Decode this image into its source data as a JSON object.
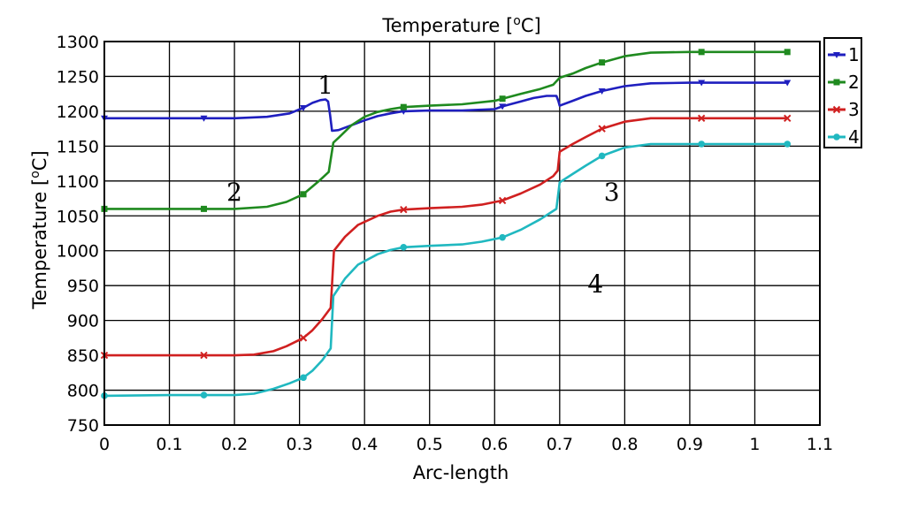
{
  "chart_data": {
    "type": "line",
    "title": "Temperature [",
    "title_sup": "o",
    "title_unit": "C]",
    "xlabel": "Arc-length",
    "ylabel": "Temperature [",
    "ylabel_sup": "o",
    "ylabel_unit": "C]",
    "xlim": [
      0,
      1.1
    ],
    "ylim": [
      750,
      1300
    ],
    "xticks": [
      "0",
      "0.1",
      "0.2",
      "0.3",
      "0.4",
      "0.5",
      "0.6",
      "0.7",
      "0.8",
      "0.9",
      "1",
      "1.1"
    ],
    "yticks": [
      "750",
      "800",
      "850",
      "900",
      "950",
      "1000",
      "1050",
      "1100",
      "1150",
      "1200",
      "1250",
      "1300"
    ],
    "grid": true,
    "legend_position": "outside-right-top",
    "series": [
      {
        "name": "1",
        "color": "#1f1fbf",
        "marker": "triangle-down",
        "points": [
          [
            0,
            1190
          ],
          [
            0.1,
            1190
          ],
          [
            0.153,
            1190
          ],
          [
            0.2,
            1190
          ],
          [
            0.25,
            1192
          ],
          [
            0.285,
            1197
          ],
          [
            0.306,
            1205
          ],
          [
            0.32,
            1212
          ],
          [
            0.332,
            1216
          ],
          [
            0.34,
            1217
          ],
          [
            0.344,
            1214
          ],
          [
            0.347,
            1195
          ],
          [
            0.35,
            1172
          ],
          [
            0.36,
            1173
          ],
          [
            0.38,
            1180
          ],
          [
            0.4,
            1187
          ],
          [
            0.42,
            1193
          ],
          [
            0.44,
            1197
          ],
          [
            0.46,
            1200
          ],
          [
            0.5,
            1201
          ],
          [
            0.55,
            1201
          ],
          [
            0.6,
            1203
          ],
          [
            0.612,
            1207
          ],
          [
            0.64,
            1214
          ],
          [
            0.66,
            1219
          ],
          [
            0.68,
            1222
          ],
          [
            0.695,
            1222
          ],
          [
            0.698,
            1215
          ],
          [
            0.7,
            1208
          ],
          [
            0.72,
            1215
          ],
          [
            0.74,
            1222
          ],
          [
            0.765,
            1229
          ],
          [
            0.8,
            1236
          ],
          [
            0.84,
            1240
          ],
          [
            0.9,
            1241
          ],
          [
            0.918,
            1241
          ],
          [
            1.0,
            1241
          ],
          [
            1.05,
            1241
          ]
        ]
      },
      {
        "name": "2",
        "color": "#1f8a1f",
        "marker": "square",
        "points": [
          [
            0,
            1060
          ],
          [
            0.1,
            1060
          ],
          [
            0.153,
            1060
          ],
          [
            0.2,
            1060
          ],
          [
            0.25,
            1063
          ],
          [
            0.28,
            1070
          ],
          [
            0.306,
            1081
          ],
          [
            0.33,
            1100
          ],
          [
            0.345,
            1113
          ],
          [
            0.352,
            1155
          ],
          [
            0.36,
            1162
          ],
          [
            0.38,
            1180
          ],
          [
            0.4,
            1192
          ],
          [
            0.42,
            1199
          ],
          [
            0.44,
            1203
          ],
          [
            0.46,
            1206
          ],
          [
            0.5,
            1208
          ],
          [
            0.55,
            1210
          ],
          [
            0.6,
            1215
          ],
          [
            0.612,
            1218
          ],
          [
            0.64,
            1225
          ],
          [
            0.67,
            1232
          ],
          [
            0.69,
            1238
          ],
          [
            0.7,
            1248
          ],
          [
            0.72,
            1254
          ],
          [
            0.74,
            1262
          ],
          [
            0.765,
            1270
          ],
          [
            0.8,
            1279
          ],
          [
            0.84,
            1284
          ],
          [
            0.9,
            1285
          ],
          [
            0.918,
            1285
          ],
          [
            1.0,
            1285
          ],
          [
            1.05,
            1285
          ]
        ]
      },
      {
        "name": "3",
        "color": "#d02020",
        "marker": "cross",
        "points": [
          [
            0,
            850
          ],
          [
            0.1,
            850
          ],
          [
            0.153,
            850
          ],
          [
            0.2,
            850
          ],
          [
            0.23,
            851
          ],
          [
            0.26,
            856
          ],
          [
            0.28,
            863
          ],
          [
            0.306,
            875
          ],
          [
            0.32,
            886
          ],
          [
            0.335,
            902
          ],
          [
            0.348,
            918
          ],
          [
            0.353,
            1000
          ],
          [
            0.37,
            1020
          ],
          [
            0.39,
            1037
          ],
          [
            0.42,
            1050
          ],
          [
            0.44,
            1056
          ],
          [
            0.46,
            1059
          ],
          [
            0.5,
            1061
          ],
          [
            0.55,
            1063
          ],
          [
            0.58,
            1066
          ],
          [
            0.612,
            1072
          ],
          [
            0.64,
            1082
          ],
          [
            0.67,
            1095
          ],
          [
            0.69,
            1107
          ],
          [
            0.697,
            1115
          ],
          [
            0.7,
            1142
          ],
          [
            0.72,
            1153
          ],
          [
            0.74,
            1163
          ],
          [
            0.765,
            1175
          ],
          [
            0.8,
            1185
          ],
          [
            0.84,
            1190
          ],
          [
            0.9,
            1190
          ],
          [
            0.918,
            1190
          ],
          [
            1.0,
            1190
          ],
          [
            1.05,
            1190
          ]
        ]
      },
      {
        "name": "4",
        "color": "#20b8c0",
        "marker": "circle",
        "points": [
          [
            0,
            792
          ],
          [
            0.1,
            793
          ],
          [
            0.153,
            793
          ],
          [
            0.2,
            793
          ],
          [
            0.23,
            795
          ],
          [
            0.26,
            802
          ],
          [
            0.285,
            810
          ],
          [
            0.306,
            818
          ],
          [
            0.32,
            828
          ],
          [
            0.335,
            843
          ],
          [
            0.348,
            860
          ],
          [
            0.352,
            935
          ],
          [
            0.37,
            960
          ],
          [
            0.39,
            980
          ],
          [
            0.42,
            995
          ],
          [
            0.44,
            1001
          ],
          [
            0.46,
            1005
          ],
          [
            0.5,
            1007
          ],
          [
            0.55,
            1009
          ],
          [
            0.58,
            1013
          ],
          [
            0.612,
            1019
          ],
          [
            0.64,
            1030
          ],
          [
            0.67,
            1045
          ],
          [
            0.695,
            1060
          ],
          [
            0.7,
            1098
          ],
          [
            0.72,
            1110
          ],
          [
            0.74,
            1122
          ],
          [
            0.765,
            1136
          ],
          [
            0.8,
            1148
          ],
          [
            0.84,
            1153
          ],
          [
            0.9,
            1153
          ],
          [
            0.918,
            1153
          ],
          [
            1.0,
            1153
          ],
          [
            1.05,
            1153
          ]
        ]
      }
    ],
    "annotations": [
      {
        "text": "1",
        "x": 0.34,
        "y": 1225
      },
      {
        "text": "2",
        "x": 0.2,
        "y": 1072
      },
      {
        "text": "3",
        "x": 0.78,
        "y": 1072
      },
      {
        "text": "4",
        "x": 0.755,
        "y": 940
      }
    ]
  }
}
